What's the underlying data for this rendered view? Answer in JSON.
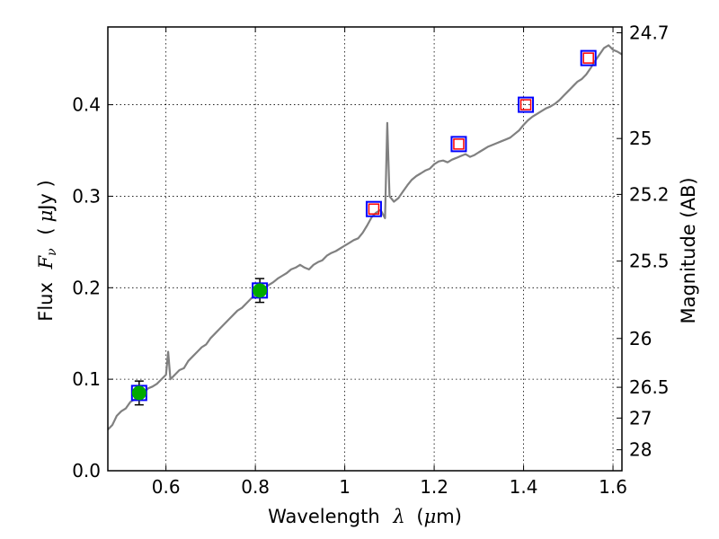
{
  "chart_data": {
    "type": "line",
    "title": "",
    "xlabel": {
      "prefix": "Wavelength",
      "symbol": "λ",
      "unit_open": "(",
      "unit_mu": "μ",
      "unit_rest": "m)"
    },
    "ylabel": {
      "prefix": "Flux",
      "symbol": "F",
      "subscript": "ν",
      "unit_open": "(",
      "unit_mu": "μ",
      "unit_rest": "Jy )"
    },
    "y2label": "Magnitude (AB)",
    "xlim": [
      0.47,
      1.62
    ],
    "ylim": [
      0.0,
      0.485
    ],
    "grid": true,
    "x_ticks": [
      {
        "value": 0.6,
        "label": "0.6"
      },
      {
        "value": 0.8,
        "label": "0.8"
      },
      {
        "value": 1.0,
        "label": "1"
      },
      {
        "value": 1.2,
        "label": "1.2"
      },
      {
        "value": 1.4,
        "label": "1.4"
      },
      {
        "value": 1.6,
        "label": "1.6"
      }
    ],
    "y_ticks": [
      {
        "value": 0.0,
        "label": "0.0"
      },
      {
        "value": 0.1,
        "label": "0.1"
      },
      {
        "value": 0.2,
        "label": "0.2"
      },
      {
        "value": 0.3,
        "label": "0.3"
      },
      {
        "value": 0.4,
        "label": "0.4"
      }
    ],
    "y2_ticks": [
      {
        "value": 24.7,
        "label": "24.7"
      },
      {
        "value": 25.0,
        "label": "25"
      },
      {
        "value": 25.2,
        "label": "25.2"
      },
      {
        "value": 25.5,
        "label": "25.5"
      },
      {
        "value": 26.0,
        "label": "26"
      },
      {
        "value": 26.5,
        "label": "26.5"
      },
      {
        "value": 27.0,
        "label": "27"
      },
      {
        "value": 28.0,
        "label": "28"
      }
    ],
    "series": [
      {
        "kind": "spectrum-line",
        "color": "#808080",
        "x": [
          0.47,
          0.48,
          0.49,
          0.5,
          0.51,
          0.52,
          0.53,
          0.54,
          0.55,
          0.56,
          0.57,
          0.58,
          0.59,
          0.6,
          0.605,
          0.61,
          0.62,
          0.63,
          0.64,
          0.65,
          0.66,
          0.67,
          0.68,
          0.69,
          0.7,
          0.71,
          0.72,
          0.73,
          0.74,
          0.75,
          0.76,
          0.77,
          0.78,
          0.79,
          0.8,
          0.81,
          0.82,
          0.83,
          0.84,
          0.85,
          0.86,
          0.87,
          0.88,
          0.89,
          0.9,
          0.91,
          0.92,
          0.93,
          0.94,
          0.95,
          0.96,
          0.97,
          0.98,
          0.99,
          1.0,
          1.01,
          1.02,
          1.03,
          1.04,
          1.05,
          1.06,
          1.07,
          1.08,
          1.09,
          1.095,
          1.1,
          1.11,
          1.12,
          1.13,
          1.14,
          1.15,
          1.16,
          1.17,
          1.18,
          1.19,
          1.2,
          1.21,
          1.22,
          1.23,
          1.24,
          1.25,
          1.26,
          1.27,
          1.28,
          1.29,
          1.3,
          1.31,
          1.32,
          1.33,
          1.34,
          1.35,
          1.36,
          1.37,
          1.38,
          1.39,
          1.4,
          1.41,
          1.42,
          1.43,
          1.44,
          1.45,
          1.46,
          1.47,
          1.48,
          1.49,
          1.5,
          1.51,
          1.52,
          1.53,
          1.54,
          1.55,
          1.56,
          1.57,
          1.58,
          1.59,
          1.6,
          1.61,
          1.62
        ],
        "y": [
          0.045,
          0.05,
          0.06,
          0.065,
          0.068,
          0.075,
          0.078,
          0.082,
          0.085,
          0.09,
          0.092,
          0.095,
          0.1,
          0.105,
          0.13,
          0.1,
          0.105,
          0.11,
          0.112,
          0.12,
          0.125,
          0.13,
          0.135,
          0.138,
          0.145,
          0.15,
          0.155,
          0.16,
          0.165,
          0.17,
          0.175,
          0.178,
          0.183,
          0.188,
          0.192,
          0.196,
          0.2,
          0.203,
          0.206,
          0.21,
          0.213,
          0.216,
          0.22,
          0.222,
          0.225,
          0.222,
          0.22,
          0.225,
          0.228,
          0.23,
          0.235,
          0.238,
          0.24,
          0.243,
          0.246,
          0.249,
          0.252,
          0.254,
          0.26,
          0.268,
          0.277,
          0.282,
          0.285,
          0.276,
          0.38,
          0.3,
          0.294,
          0.298,
          0.305,
          0.312,
          0.318,
          0.322,
          0.325,
          0.328,
          0.33,
          0.335,
          0.338,
          0.339,
          0.337,
          0.34,
          0.342,
          0.344,
          0.346,
          0.343,
          0.345,
          0.348,
          0.351,
          0.354,
          0.356,
          0.358,
          0.36,
          0.362,
          0.364,
          0.368,
          0.372,
          0.378,
          0.383,
          0.387,
          0.39,
          0.393,
          0.396,
          0.398,
          0.401,
          0.405,
          0.41,
          0.415,
          0.42,
          0.425,
          0.428,
          0.433,
          0.44,
          0.448,
          0.455,
          0.462,
          0.465,
          0.46,
          0.458,
          0.455
        ]
      },
      {
        "kind": "model-squares",
        "edge_color": "#0000ff",
        "x": [
          0.54,
          0.81,
          1.065,
          1.255,
          1.405,
          1.545
        ],
        "y": [
          0.085,
          0.197,
          0.286,
          0.357,
          0.4,
          0.451
        ]
      },
      {
        "kind": "photometry-points",
        "color": "#00aa00",
        "x": [
          0.54,
          0.81
        ],
        "y": [
          0.085,
          0.197
        ],
        "yerr": [
          0.013,
          0.013
        ]
      },
      {
        "kind": "model-inner-squares",
        "color": "#ff0000",
        "x": [
          1.065,
          1.255,
          1.405,
          1.545
        ],
        "y": [
          0.286,
          0.357,
          0.4,
          0.451
        ]
      }
    ]
  }
}
